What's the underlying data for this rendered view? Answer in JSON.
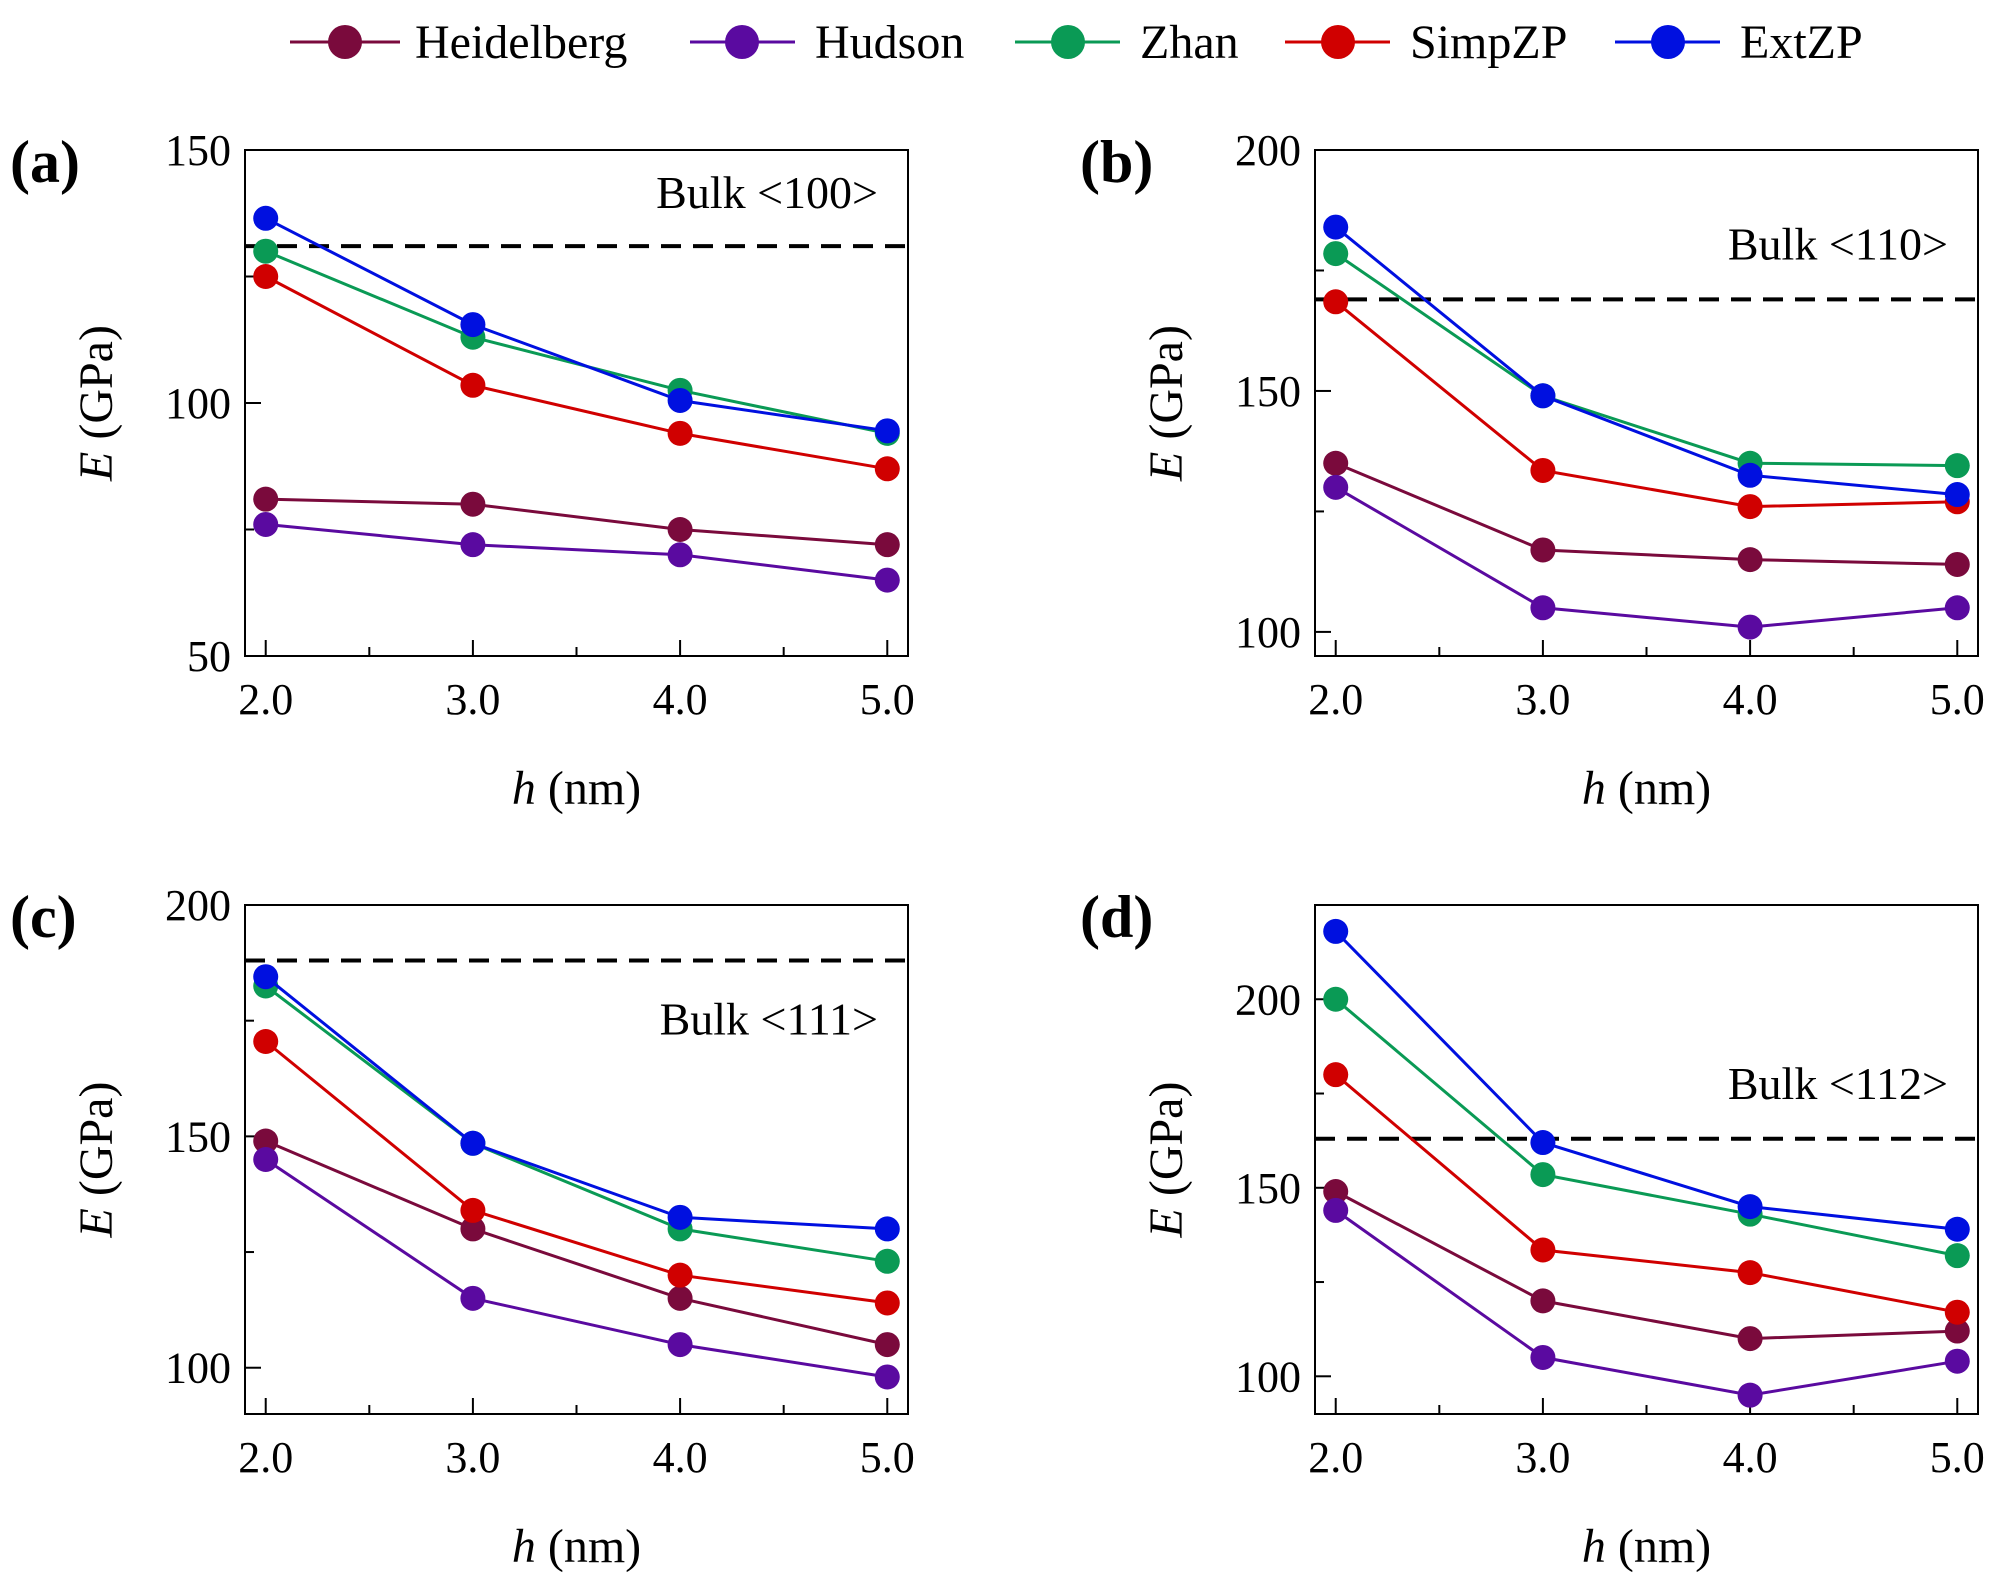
{
  "chart_data": {
    "legend": [
      {
        "name": "Heidelberg",
        "color": "#7a0a3c"
      },
      {
        "name": "Hudson",
        "color": "#5a0aa0"
      },
      {
        "name": "Zhan",
        "color": "#0a9a55"
      },
      {
        "name": "SimpZP",
        "color": "#d00000"
      },
      {
        "name": "ExtZP",
        "color": "#0010e0"
      }
    ],
    "panels": [
      {
        "id": "a",
        "label": "(a)",
        "type": "line",
        "xlabel_var": "h",
        "xlabel_unit": "(nm)",
        "ylabel_var": "E",
        "ylabel_unit": "(GPa)",
        "x": [
          2,
          3,
          4,
          5
        ],
        "x_tick_labels": [
          "2.0",
          "3.0",
          "4.0",
          "5.0"
        ],
        "xlim": [
          1.9,
          5.1
        ],
        "ylim": [
          50,
          150
        ],
        "yticks": [
          50,
          100,
          150
        ],
        "y_tick_labels": [
          "50",
          "100",
          "150"
        ],
        "bulk": {
          "value": 131,
          "label": "Bulk <100>"
        },
        "series": [
          {
            "name": "Heidelberg",
            "values": [
              81,
              80,
              75,
              72
            ]
          },
          {
            "name": "Hudson",
            "values": [
              76,
              72,
              70,
              65
            ]
          },
          {
            "name": "Zhan",
            "values": [
              130,
              113,
              102.5,
              94
            ]
          },
          {
            "name": "SimpZP",
            "values": [
              125,
              103.5,
              94,
              87
            ]
          },
          {
            "name": "ExtZP",
            "values": [
              136.5,
              115.5,
              100.5,
              94.5
            ]
          }
        ]
      },
      {
        "id": "b",
        "label": "(b)",
        "type": "line",
        "xlabel_var": "h",
        "xlabel_unit": "(nm)",
        "ylabel_var": "E",
        "ylabel_unit": "(GPa)",
        "x": [
          2,
          3,
          4,
          5
        ],
        "x_tick_labels": [
          "2.0",
          "3.0",
          "4.0",
          "5.0"
        ],
        "xlim": [
          1.9,
          5.1
        ],
        "ylim": [
          95,
          200
        ],
        "yticks": [
          100,
          150,
          200
        ],
        "y_tick_labels": [
          "100",
          "150",
          "200"
        ],
        "bulk": {
          "value": 169,
          "label": "Bulk <110>"
        },
        "series": [
          {
            "name": "Heidelberg",
            "values": [
              135,
              117,
              115,
              114
            ]
          },
          {
            "name": "Hudson",
            "values": [
              130,
              105,
              101,
              105
            ]
          },
          {
            "name": "Zhan",
            "values": [
              178.5,
              149,
              135,
              134.5
            ]
          },
          {
            "name": "SimpZP",
            "values": [
              168.5,
              133.5,
              126,
              127
            ]
          },
          {
            "name": "ExtZP",
            "values": [
              184,
              149,
              132.5,
              128.5
            ]
          }
        ]
      },
      {
        "id": "c",
        "label": "(c)",
        "type": "line",
        "xlabel_var": "h",
        "xlabel_unit": "(nm)",
        "ylabel_var": "E",
        "ylabel_unit": "(GPa)",
        "x": [
          2,
          3,
          4,
          5
        ],
        "x_tick_labels": [
          "2.0",
          "3.0",
          "4.0",
          "5.0"
        ],
        "xlim": [
          1.9,
          5.1
        ],
        "ylim": [
          90,
          200
        ],
        "yticks": [
          100,
          150,
          200
        ],
        "y_tick_labels": [
          "100",
          "150",
          "200"
        ],
        "bulk": {
          "value": 188,
          "label": "Bulk <111>"
        },
        "series": [
          {
            "name": "Heidelberg",
            "values": [
              149,
              130,
              115,
              105
            ]
          },
          {
            "name": "Hudson",
            "values": [
              145,
              115,
              105,
              98
            ]
          },
          {
            "name": "Zhan",
            "values": [
              182.5,
              148.5,
              130,
              123
            ]
          },
          {
            "name": "SimpZP",
            "values": [
              170.5,
              134,
              120,
              114
            ]
          },
          {
            "name": "ExtZP",
            "values": [
              184.5,
              148.5,
              132.5,
              130
            ]
          }
        ]
      },
      {
        "id": "d",
        "label": "(d)",
        "type": "line",
        "xlabel_var": "h",
        "xlabel_unit": "(nm)",
        "ylabel_var": "E",
        "ylabel_unit": "(GPa)",
        "x": [
          2,
          3,
          4,
          5
        ],
        "x_tick_labels": [
          "2.0",
          "3.0",
          "4.0",
          "5.0"
        ],
        "xlim": [
          1.9,
          5.1
        ],
        "ylim": [
          90,
          225
        ],
        "yticks": [
          100,
          150,
          200
        ],
        "y_tick_labels": [
          "100",
          "150",
          "200"
        ],
        "bulk": {
          "value": 163,
          "label": "Bulk <112>"
        },
        "series": [
          {
            "name": "Heidelberg",
            "values": [
              149,
              120,
              110,
              112
            ]
          },
          {
            "name": "Hudson",
            "values": [
              144,
              105,
              95,
              104
            ]
          },
          {
            "name": "Zhan",
            "values": [
              200,
              153.5,
              143,
              132
            ]
          },
          {
            "name": "SimpZP",
            "values": [
              180,
              133.5,
              127.5,
              117
            ]
          },
          {
            "name": "ExtZP",
            "values": [
              218,
              162,
              145,
              139
            ]
          }
        ]
      }
    ]
  }
}
